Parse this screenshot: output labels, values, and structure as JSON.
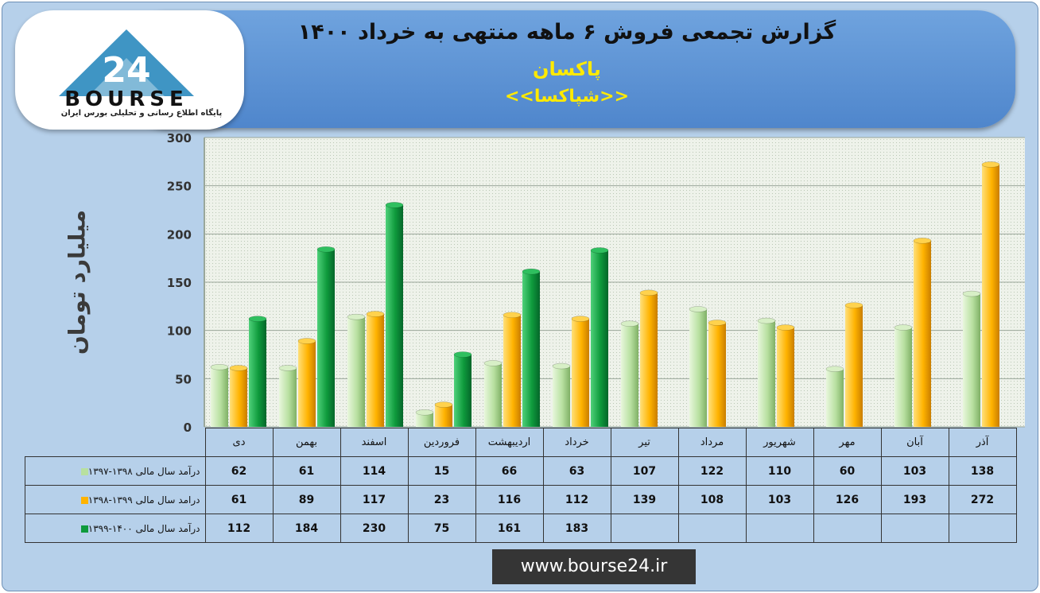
{
  "title": {
    "main": "گزارش تجمعی فروش ۶ ماهه منتهی به خرداد ۱۴۰۰",
    "company": "پاکسان",
    "symbol": "<<شپاکسا>>"
  },
  "logo": {
    "name": "BOURSE",
    "number": "24",
    "caption": "پایگاه اطلاع رسانی و تحلیلی بورس ایران"
  },
  "website": "www.bourse24.ir",
  "colors": {
    "series1": "#b8e0a0",
    "series2": "#ffb300",
    "series3": "#0e9a3c"
  },
  "chart_data": {
    "type": "bar",
    "categories": [
      "آذر",
      "آبان",
      "مهر",
      "شهریور",
      "مرداد",
      "تیر",
      "خرداد",
      "اردیبهشت",
      "فروردین",
      "اسفند",
      "بهمن",
      "دی"
    ],
    "series": [
      {
        "name": "درآمد سال مالی ۱۳۹۸-۱۳۹۷",
        "values": [
          138,
          103,
          60,
          110,
          122,
          107,
          63,
          66,
          15,
          114,
          61,
          62
        ]
      },
      {
        "name": "درامد سال مالی ۱۳۹۹-۱۳۹۸",
        "values": [
          272,
          193,
          126,
          103,
          108,
          139,
          112,
          116,
          23,
          117,
          89,
          61
        ]
      },
      {
        "name": "درآمد سال مالی ۱۴۰۰-۱۳۹۹",
        "values": [
          null,
          null,
          null,
          null,
          null,
          null,
          183,
          161,
          75,
          230,
          184,
          112
        ]
      }
    ],
    "ylabel": "میلیارد تومان",
    "ylim": [
      0,
      300
    ],
    "yticks": [
      0,
      50,
      100,
      150,
      200,
      250,
      300
    ],
    "grid": true,
    "legend": "table"
  }
}
